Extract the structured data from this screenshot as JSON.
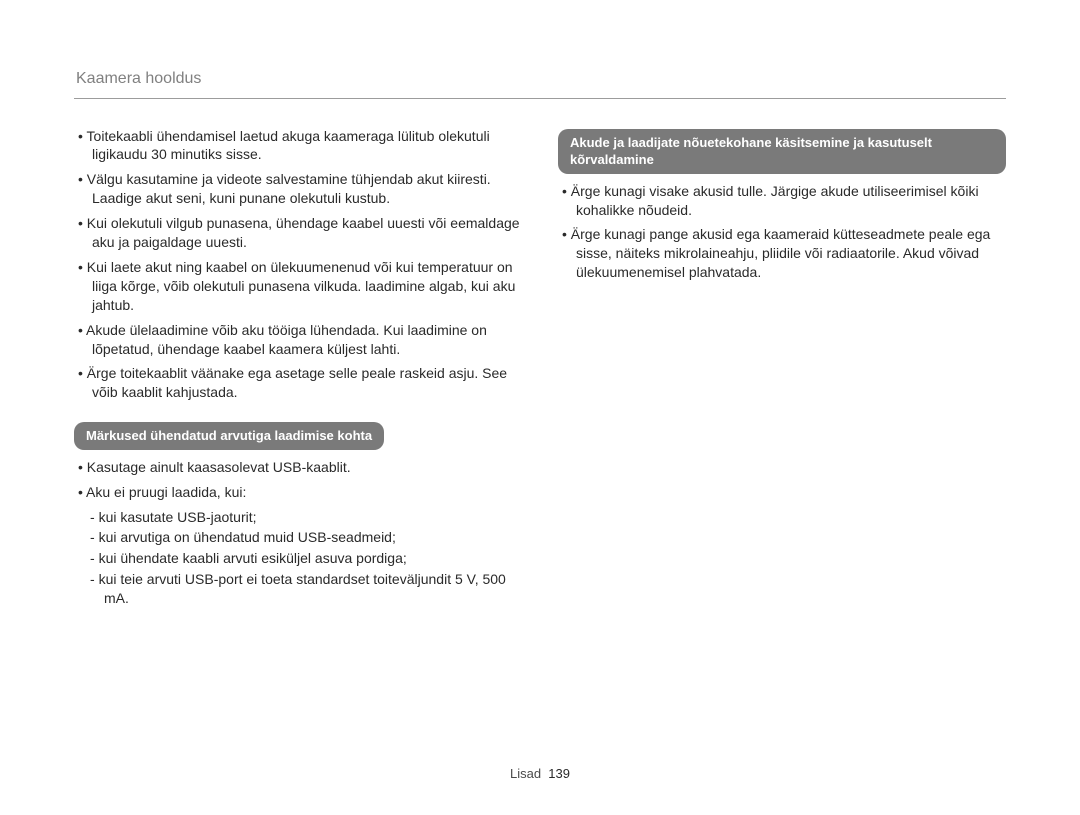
{
  "colors": {
    "page_bg": "#ffffff",
    "title_color": "#808080",
    "rule_color": "#9c9c9c",
    "body_text": "#2a2a2a",
    "pill_bg": "#7a7a7a",
    "pill_text": "#ffffff"
  },
  "typography": {
    "body_fontsize_pt": 11,
    "title_fontsize_pt": 12,
    "pill_fontsize_pt": 10,
    "pill_weight": "bold"
  },
  "title": "Kaamera hooldus",
  "left": {
    "bullets_top": [
      "Toitekaabli ühendamisel laetud akuga kaameraga lülitub olekutuli ligikaudu 30 minutiks sisse.",
      "Välgu kasutamine ja videote salvestamine tühjendab akut kiiresti. Laadige akut seni, kuni punane olekutuli kustub.",
      "Kui olekutuli vilgub punasena, ühendage kaabel uuesti või eemaldage aku ja paigaldage uuesti.",
      "Kui laete akut ning kaabel on ülekuumenenud või kui temperatuur on liiga kõrge, võib olekutuli punasena vilkuda. laadimine algab, kui aku jahtub.",
      "Akude ülelaadimine võib aku tööiga lühendada. Kui laadimine on lõpetatud, ühendage kaabel kaamera küljest lahti.",
      "Ärge toitekaablit väänake ega asetage selle peale raskeid asju. See võib kaablit kahjustada."
    ],
    "pill": "Märkused ühendatud arvutiga laadimise kohta",
    "bullets_mid": [
      "Kasutage ainult kaasasolevat USB-kaablit.",
      "Aku ei pruugi laadida, kui:"
    ],
    "dashes": [
      "kui kasutate USB-jaoturit;",
      "kui arvutiga on ühendatud muid USB-seadmeid;",
      "kui ühendate kaabli arvuti esiküljel asuva pordiga;",
      "kui teie arvuti USB-port ei toeta standardset toiteväljundit 5 V, 500 mA."
    ]
  },
  "right": {
    "pill": "Akude ja laadijate nõuetekohane käsitsemine ja kasutuselt kõrvaldamine",
    "bullets": [
      "Ärge kunagi visake akusid tulle. Järgige akude utiliseerimisel kõiki kohalikke nõudeid.",
      "Ärge kunagi pange akusid ega kaameraid kütteseadmete peale ega sisse, näiteks mikrolaineahju, pliidile või radiaatorile. Akud võivad ülekuumenemisel plahvatada."
    ]
  },
  "footer": {
    "label": "Lisad",
    "page": "139"
  }
}
